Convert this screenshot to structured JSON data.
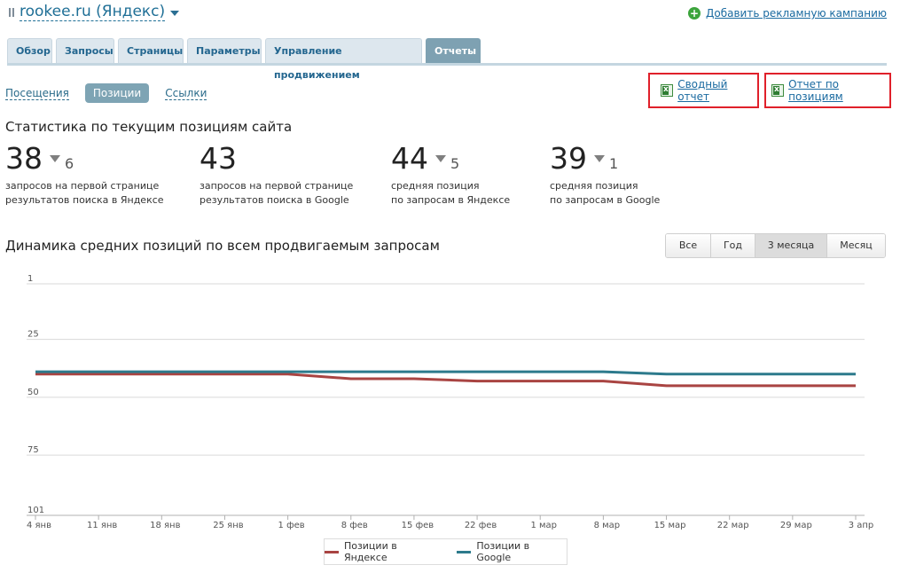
{
  "header": {
    "site_name": "rookee.ru (Яндекс)",
    "add_campaign": "Добавить рекламную кампанию"
  },
  "tabs": [
    "Обзор",
    "Запросы",
    "Страницы",
    "Параметры",
    "Управление продвижением",
    "Отчеты"
  ],
  "active_tab": "Отчеты",
  "subnav": {
    "visits": "Посещения",
    "positions": "Позиции",
    "links": "Ссылки"
  },
  "reports": {
    "summary": "Сводный отчет",
    "positions": "Отчет по позициям"
  },
  "stats": {
    "heading": "Статистика по текущим позициям сайта",
    "items": [
      {
        "value": "38",
        "delta": "6",
        "caption1": "запросов на первой странице",
        "caption2": "результатов поиска в Яндексе"
      },
      {
        "value": "43",
        "delta": "",
        "caption1": "запросов на первой странице",
        "caption2": "результатов поиска в Google"
      },
      {
        "value": "44",
        "delta": "5",
        "caption1": "средняя позиция",
        "caption2": "по запросам в Яндексе"
      },
      {
        "value": "39",
        "delta": "1",
        "caption1": "средняя позиция",
        "caption2": "по запросам в Google"
      }
    ]
  },
  "dynamics": {
    "heading": "Динамика средних позиций по всем продвигаемым запросам",
    "ranges": [
      "Все",
      "Год",
      "3 месяца",
      "Месяц"
    ],
    "active_range": "3 месяца"
  },
  "chart_data": {
    "type": "line",
    "title": "Динамика средних позиций по всем продвигаемым запросам",
    "xlabel": "",
    "ylabel": "",
    "ylim": [
      1,
      101
    ],
    "y_inverted": true,
    "grid": true,
    "yticks": [
      "1",
      "25",
      "50",
      "75",
      "101"
    ],
    "categories": [
      "4 янв",
      "11 янв",
      "18 янв",
      "25 янв",
      "1 фев",
      "8 фев",
      "15 фев",
      "22 фев",
      "1 мар",
      "8 мар",
      "15 мар",
      "22 мар",
      "29 мар",
      "3 апр"
    ],
    "series": [
      {
        "name": "Позиции в Яндексе",
        "color": "#a94442",
        "values": [
          40,
          40,
          40,
          40,
          40,
          42,
          42,
          43,
          43,
          43,
          45,
          45,
          45,
          45
        ]
      },
      {
        "name": "Позиции в Google",
        "color": "#2d7a8c",
        "values": [
          39,
          39,
          39,
          39,
          39,
          39,
          39,
          39,
          39,
          39,
          40,
          40,
          40,
          40
        ]
      }
    ],
    "legend_position": "bottom"
  }
}
